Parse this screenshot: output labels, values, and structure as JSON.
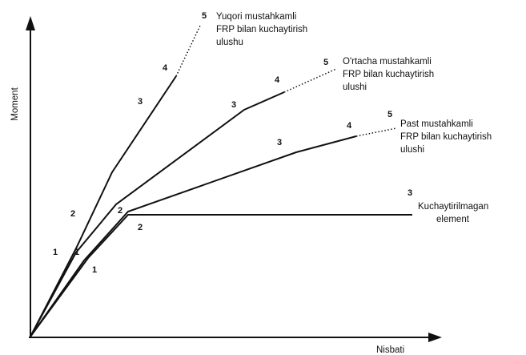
{
  "axes": {
    "y_label": "Moment",
    "x_label": "Nisbati"
  },
  "curves": [
    {
      "label": [
        "Yuqori mustahkamli",
        "FRP bilan kuchaytirish",
        "ulushu"
      ],
      "points": [
        "1",
        "2",
        "3",
        "4",
        "5"
      ]
    },
    {
      "label": [
        "O'rtacha mustahkamli",
        "FRP bilan kuchaytirish",
        "ulushi"
      ],
      "points": [
        "1",
        "2",
        "3",
        "4",
        "5"
      ]
    },
    {
      "label": [
        "Past mustahkamli",
        "FRP bilan kuchaytirish",
        "ulushi"
      ],
      "points": [
        "1",
        "3",
        "4",
        "5"
      ]
    },
    {
      "label": [
        "Kuchaytirilmagan",
        "element"
      ],
      "points": [
        "2",
        "3"
      ]
    }
  ]
}
